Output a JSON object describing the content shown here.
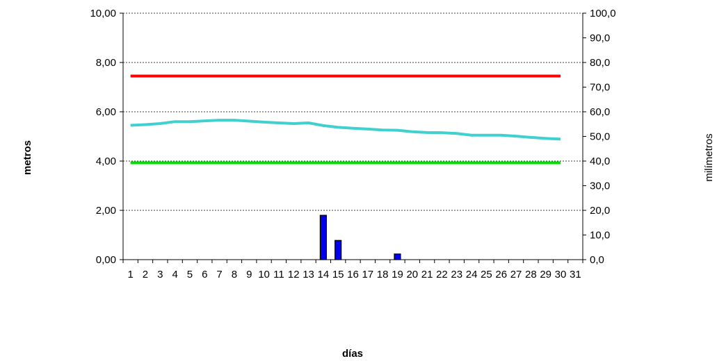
{
  "chart_data": {
    "type": "bar+line",
    "title": "",
    "xlabel": "días",
    "ylabel_left": "metros",
    "ylabel_right": "milímetros",
    "x": [
      1,
      2,
      3,
      4,
      5,
      6,
      7,
      8,
      9,
      10,
      11,
      12,
      13,
      14,
      15,
      16,
      17,
      18,
      19,
      20,
      21,
      22,
      23,
      24,
      25,
      26,
      27,
      28,
      29,
      30,
      31
    ],
    "x_tick_labels": [
      "1",
      "2",
      "3",
      "4",
      "5",
      "6",
      "7",
      "8",
      "9",
      "10",
      "11",
      "12",
      "13",
      "14",
      "15",
      "16",
      "17",
      "18",
      "19",
      "20",
      "21",
      "22",
      "23",
      "24",
      "25",
      "26",
      "27",
      "28",
      "29",
      "30",
      "31"
    ],
    "y_left": {
      "min": 0,
      "max": 10,
      "ticks": [
        "0,00",
        "2,00",
        "4,00",
        "6,00",
        "8,00",
        "10,00"
      ]
    },
    "y_right": {
      "min": 0,
      "max": 100,
      "ticks": [
        "0,0",
        "10,0",
        "20,0",
        "30,0",
        "40,0",
        "50,0",
        "60,0",
        "70,0",
        "80,0",
        "90,0",
        "100,0"
      ]
    },
    "grid": "horizontal dashed at left major ticks",
    "series": [
      {
        "type": "line",
        "axis": "left",
        "color": "#ff0000",
        "x": [
          1,
          30
        ],
        "values": [
          7.45,
          7.45
        ]
      },
      {
        "type": "line",
        "axis": "left",
        "color": "#00e000",
        "x": [
          1,
          30
        ],
        "values": [
          3.93,
          3.93
        ]
      },
      {
        "type": "line",
        "axis": "left",
        "color": "#40d0d0",
        "x": [
          1,
          2,
          3,
          4,
          5,
          6,
          7,
          8,
          9,
          10,
          11,
          12,
          13,
          14,
          15,
          16,
          17,
          18,
          19,
          20,
          21,
          22,
          23,
          24,
          25,
          26,
          27,
          28,
          29,
          30
        ],
        "values": [
          5.45,
          5.48,
          5.52,
          5.6,
          5.6,
          5.63,
          5.66,
          5.66,
          5.62,
          5.58,
          5.55,
          5.52,
          5.55,
          5.44,
          5.37,
          5.33,
          5.3,
          5.26,
          5.25,
          5.19,
          5.16,
          5.15,
          5.12,
          5.05,
          5.05,
          5.05,
          5.01,
          4.96,
          4.92,
          4.89
        ]
      },
      {
        "type": "bar",
        "axis": "right",
        "color": "#0000ee",
        "x": [
          14,
          15,
          19
        ],
        "values": [
          18.0,
          7.8,
          2.3
        ]
      }
    ]
  }
}
